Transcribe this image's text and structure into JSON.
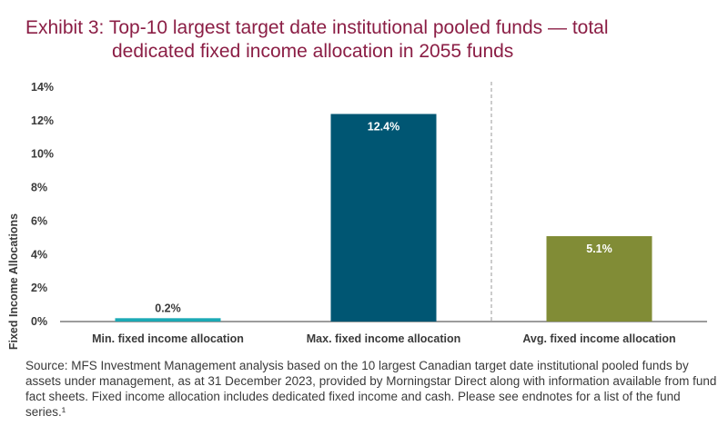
{
  "title": {
    "line1": "Exhibit 3: Top-10 largest target date institutional pooled funds — total",
    "line2": "dedicated fixed income allocation in 2055 funds"
  },
  "source": "Source: MFS Investment Management analysis based on the 10 largest Canadian target date institutional pooled funds by assets under management, as at 31 December 2023, provided by Morningstar Direct along with information available from fund fact sheets. Fixed income allocation includes dedicated fixed income and cash. Please see endnotes for a list of the fund series.¹",
  "chart_data": {
    "type": "bar",
    "categories": [
      "Min. fixed income allocation",
      "Max. fixed income allocation",
      "Avg. fixed income allocation"
    ],
    "values": [
      0.2,
      12.4,
      5.1
    ],
    "data_labels": [
      "0.2%",
      "12.4%",
      "5.1%"
    ],
    "colors": [
      "#1ba9b5",
      "#005673",
      "#818c36"
    ],
    "label_colors": [
      "#3a3a3a",
      "#ffffff",
      "#ffffff"
    ],
    "ylabel": "Fixed Income Allocations",
    "ylim": [
      0,
      14
    ],
    "yticks": [
      0,
      2,
      4,
      6,
      8,
      10,
      12,
      14
    ],
    "ytick_labels": [
      "0%",
      "2%",
      "4%",
      "6%",
      "8%",
      "10%",
      "12%",
      "14%"
    ],
    "grid": false,
    "divider": "dashed line between second and third bar"
  }
}
